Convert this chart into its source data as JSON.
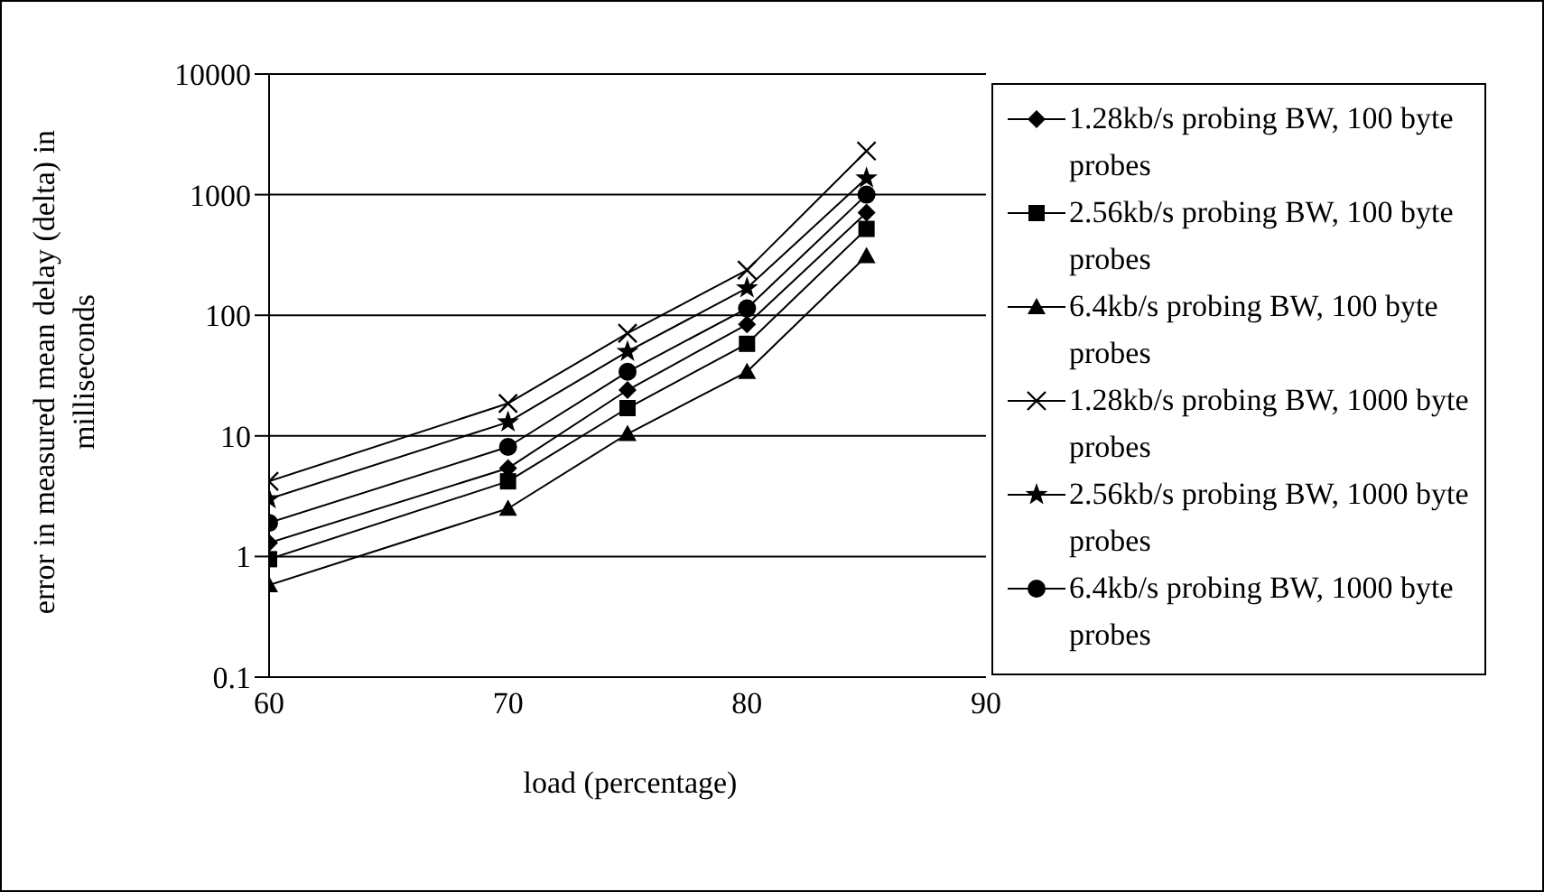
{
  "chart_data": {
    "type": "line",
    "xlabel": "load (percentage)",
    "ylabel": "error in measured mean delay (delta) in milliseconds",
    "x": [
      60,
      70,
      75,
      80,
      85
    ],
    "series": [
      {
        "name": "1.28kb/s probing BW, 100 byte probes",
        "color": "#000000",
        "marker": "diamond",
        "values": [
          1.3,
          5.4,
          24,
          84,
          710
        ]
      },
      {
        "name": "2.56kb/s probing BW, 100 byte probes",
        "color": "#000000",
        "marker": "square",
        "values": [
          0.95,
          4.2,
          17,
          58,
          520
        ]
      },
      {
        "name": "6.4kb/s probing BW, 100 byte probes",
        "color": "#000000",
        "marker": "triangle",
        "values": [
          0.58,
          2.5,
          10.4,
          34,
          310
        ]
      },
      {
        "name": "1.28kb/s probing BW, 1000 byte probes",
        "color": "#000000",
        "marker": "cross",
        "values": [
          4.2,
          18.6,
          71,
          237,
          2300
        ]
      },
      {
        "name": "2.56kb/s probing BW, 1000 byte probes",
        "color": "#000000",
        "marker": "star",
        "values": [
          3,
          13,
          50,
          168,
          1370
        ]
      },
      {
        "name": "6.4kb/s probing BW, 1000 byte probes",
        "color": "#000000",
        "marker": "circle",
        "values": [
          1.9,
          8.1,
          34,
          114,
          1000
        ]
      }
    ],
    "xlim": [
      60,
      90
    ],
    "xticks": [
      60,
      70,
      80,
      90
    ],
    "ylim": [
      0.1,
      10000
    ],
    "yticks": [
      0.1,
      1,
      10,
      100,
      1000,
      10000
    ],
    "log": "y",
    "grid": "y",
    "legend": "right",
    "line_style": "solid"
  }
}
